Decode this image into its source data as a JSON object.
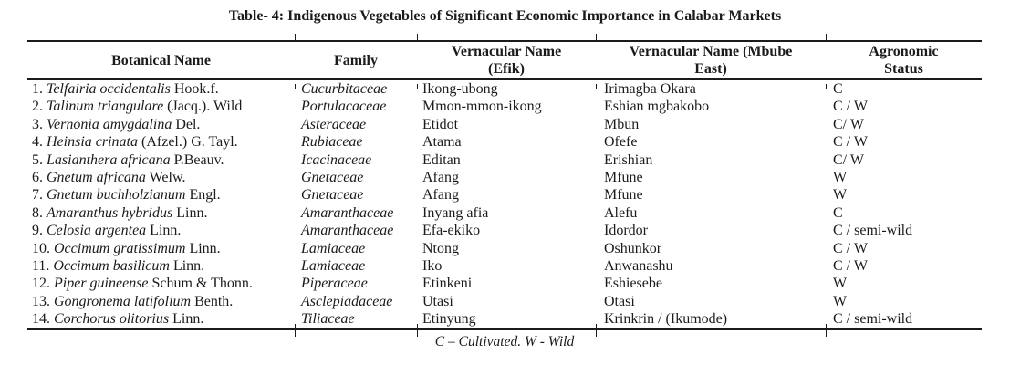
{
  "page": {
    "title": "Table- 4: Indigenous Vegetables of Significant Economic Importance in Calabar Markets"
  },
  "table": {
    "columns": [
      {
        "label": "Botanical Name"
      },
      {
        "label": "Family"
      },
      {
        "label": "Vernacular Name\n(Efik)"
      },
      {
        "label": "Vernacular Name (Mbube\nEast)"
      },
      {
        "label": "Agronomic\nStatus"
      }
    ],
    "rows": [
      {
        "num": "1.",
        "scientific": "Telfairia occidentalis",
        "authority": "Hook.f.",
        "family": "Cucurbitaceae",
        "vernacular_efik": "Ikong-ubong",
        "vernacular_mbube": "Irimagba Okara",
        "status": "C"
      },
      {
        "num": "2.",
        "scientific": "Talinum triangulare",
        "authority": "(Jacq.). Wild",
        "family": "Portulacaceae",
        "vernacular_efik": "Mmon-mmon-ikong",
        "vernacular_mbube": "Eshian mgbakobo",
        "status": "C / W"
      },
      {
        "num": "3.",
        "scientific": "Vernonia amygdalina",
        "authority": "Del.",
        "family": "Asteraceae",
        "vernacular_efik": "Etidot",
        "vernacular_mbube": "Mbun",
        "status": "C/ W"
      },
      {
        "num": "4.",
        "scientific": "Heinsia crinata",
        "authority": "(Afzel.) G. Tayl.",
        "family": "Rubiaceae",
        "vernacular_efik": "Atama",
        "vernacular_mbube": "Ofefe",
        "status": "C / W"
      },
      {
        "num": "5.",
        "scientific": "Lasianthera africana",
        "authority": "P.Beauv.",
        "family": "Icacinaceae",
        "vernacular_efik": "Editan",
        "vernacular_mbube": "Erishian",
        "status": "C/ W"
      },
      {
        "num": "6.",
        "scientific": "Gnetum africana",
        "authority": "Welw.",
        "family": "Gnetaceae",
        "vernacular_efik": "Afang",
        "vernacular_mbube": "Mfune",
        "status": "W"
      },
      {
        "num": "7.",
        "scientific": "Gnetum buchholzianum",
        "authority": "Engl.",
        "family": "Gnetaceae",
        "vernacular_efik": "Afang",
        "vernacular_mbube": "Mfune",
        "status": "W"
      },
      {
        "num": "8.",
        "scientific": "Amaranthus hybridus",
        "authority": "Linn.",
        "family": "Amaranthaceae",
        "vernacular_efik": "Inyang afia",
        "vernacular_mbube": "Alefu",
        "status": "C"
      },
      {
        "num": "9.",
        "scientific": "Celosia argentea",
        "authority": "Linn.",
        "family": "Amaranthaceae",
        "vernacular_efik": "Efa-ekiko",
        "vernacular_mbube": "Idordor",
        "status": "C / semi-wild"
      },
      {
        "num": "10.",
        "scientific": "Occimum gratissimum",
        "authority": "Linn.",
        "family": "Lamiaceae",
        "vernacular_efik": "Ntong",
        "vernacular_mbube": "Oshunkor",
        "status": "C / W"
      },
      {
        "num": "11.",
        "scientific": "Occimum basilicum",
        "authority": "Linn.",
        "family": "Lamiaceae",
        "vernacular_efik": "Iko",
        "vernacular_mbube": "Anwanashu",
        "status": "C / W"
      },
      {
        "num": "12.",
        "scientific": "Piper guineense",
        "authority": "Schum & Thonn.",
        "family": "Piperaceae",
        "vernacular_efik": "Etinkeni",
        "vernacular_mbube": "Eshiesebe",
        "status": "W"
      },
      {
        "num": "13.",
        "scientific": "Gongronema latifolium",
        "authority": "Benth.",
        "family": "Asclepiadaceae",
        "vernacular_efik": "Utasi",
        "vernacular_mbube": "Otasi",
        "status": "W"
      },
      {
        "num": "14.",
        "scientific": "Corchorus olitorius",
        "authority": "Linn.",
        "family": "Tiliaceae",
        "vernacular_efik": "Etinyung",
        "vernacular_mbube": "Krinkrin / (Ikumode)",
        "status": "C / semi-wild"
      }
    ],
    "footnote": "C – Cultivated. W - Wild"
  }
}
